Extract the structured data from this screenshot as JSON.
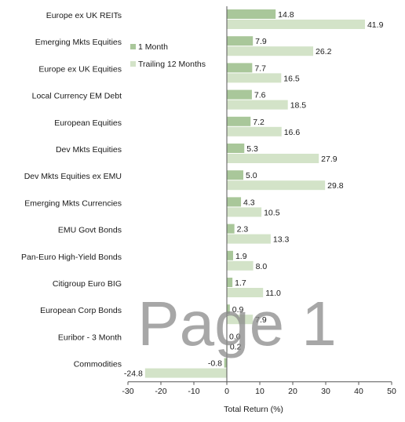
{
  "chart_data": {
    "type": "bar",
    "orientation": "horizontal",
    "categories": [
      "Europe ex UK REITs",
      "Emerging Mkts Equities",
      "Europe ex UK Equities",
      "Local Currency EM Debt",
      "European Equities",
      "Dev Mkts Equities",
      "Dev Mkts Equities ex EMU",
      "Emerging Mkts Currencies",
      "EMU Govt Bonds",
      "Pan-Euro High-Yield Bonds",
      "Citigroup Euro BIG",
      "European Corp Bonds",
      "Euribor - 3 Month",
      "Commodities"
    ],
    "series": [
      {
        "name": "1 Month",
        "color": "#a9c79a",
        "values": [
          14.8,
          7.9,
          7.7,
          7.6,
          7.2,
          5.3,
          5.0,
          4.3,
          2.3,
          1.9,
          1.7,
          0.9,
          0.0,
          -0.8
        ],
        "labels": [
          "14.8",
          "7.9",
          "7.7",
          "7.6",
          "7.2",
          "5.3",
          "5.0",
          "4.3",
          "2.3",
          "1.9",
          "1.7",
          "0.9",
          "0.0",
          "-0.8"
        ]
      },
      {
        "name": "Trailing 12 Months",
        "color": "#d3e3c8",
        "values": [
          41.9,
          26.2,
          16.5,
          18.5,
          16.6,
          27.9,
          29.8,
          10.5,
          13.3,
          8.0,
          11.0,
          7.9,
          0.2,
          -24.8
        ],
        "labels": [
          "41.9",
          "26.2",
          "16.5",
          "18.5",
          "16.6",
          "27.9",
          "29.8",
          "10.5",
          "13.3",
          "8.0",
          "11.0",
          "7.9",
          "0.2",
          "-24.8"
        ]
      }
    ],
    "xlabel": "Total Return (%)",
    "xlim": [
      -30,
      50
    ],
    "ticks": [
      "-30",
      "-20",
      "-10",
      "0",
      "10",
      "20",
      "30",
      "40",
      "50"
    ],
    "legend_position": "upper-left of plot area",
    "grid": false
  },
  "watermark": "Page 1"
}
